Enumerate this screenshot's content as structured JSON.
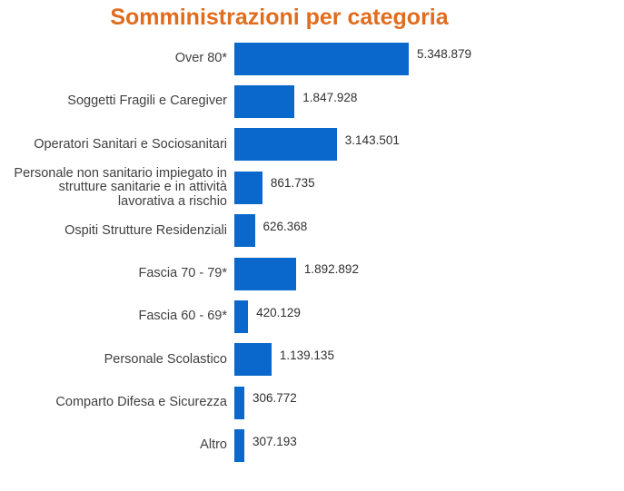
{
  "colors": {
    "background": "#ffffff",
    "bar": "#0a68cc",
    "title": "#e06c1f",
    "category_label": "#404040",
    "value_label": "#303030"
  },
  "chart_data": {
    "type": "bar",
    "orientation": "horizontal",
    "title": "Somministrazioni per categoria",
    "categories": [
      "Over 80*",
      "Soggetti Fragili e Caregiver",
      "Operatori Sanitari e Sociosanitari",
      "Personale non sanitario impiegato in strutture sanitarie e in attività lavorativa a rischio",
      "Ospiti Strutture Residenziali",
      "Fascia 70 - 79*",
      "Fascia 60 - 69*",
      "Personale Scolastico",
      "Comparto Difesa e Sicurezza",
      "Altro"
    ],
    "values": [
      5348879,
      1847928,
      3143501,
      861735,
      626368,
      1892892,
      420129,
      1139135,
      306772,
      307193
    ],
    "value_labels": [
      "5.348.879",
      "1.847.928",
      "3.143.501",
      "861.735",
      "626.368",
      "1.892.892",
      "420.129",
      "1.139.135",
      "306.772",
      "307.193"
    ],
    "xlim": [
      0,
      5348879
    ],
    "grid": false,
    "legend": "none",
    "axis_labels": "none",
    "value_label_position": "outside-end"
  }
}
